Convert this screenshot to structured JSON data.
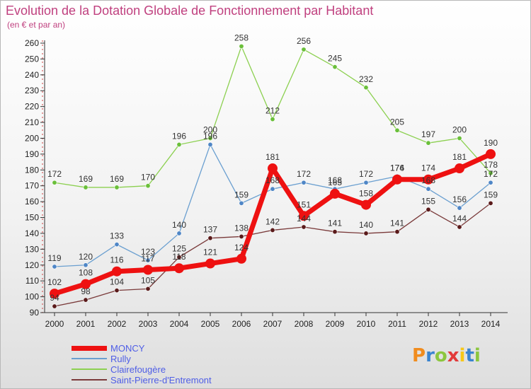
{
  "header": {
    "title": "Evolution de la Dotation Globale de Fonctionnement par Habitant",
    "subtitle": "(en € et par an)"
  },
  "logo": {
    "text": "Proxiti",
    "colors": [
      "#f08c1e",
      "#3a84cf",
      "#8cc63f",
      "#e23a3a",
      "#f7c718",
      "#3a84cf",
      "#8cc63f"
    ]
  },
  "chart_data": {
    "type": "line",
    "x": [
      "2000",
      "2001",
      "2002",
      "2003",
      "2004",
      "2005",
      "2006",
      "2007",
      "2008",
      "2009",
      "2010",
      "2011",
      "2012",
      "2013",
      "2014"
    ],
    "ylim": [
      90,
      260
    ],
    "yticks": [
      90,
      100,
      110,
      120,
      130,
      140,
      150,
      160,
      170,
      180,
      190,
      200,
      210,
      220,
      230,
      240,
      250,
      260
    ],
    "grid": false,
    "legend_position": "bottom-left",
    "series": [
      {
        "name": "Clairefougère",
        "color": "#8cd050",
        "marker": "#6abf3a",
        "values": [
          172,
          169,
          169,
          170,
          196,
          200,
          258,
          212,
          256,
          245,
          232,
          205,
          197,
          200,
          178
        ],
        "labels": [
          "172",
          "169",
          "169",
          "170",
          "196",
          "200",
          "258",
          "212",
          "256",
          "245",
          "232",
          "205",
          "197",
          "200",
          "178"
        ]
      },
      {
        "name": "Rully",
        "color": "#6a9fd0",
        "marker": "#4f86c6",
        "values": [
          119,
          120,
          133,
          123,
          140,
          196,
          159,
          168,
          172,
          168,
          172,
          176,
          168,
          156,
          172
        ],
        "labels": [
          "119",
          "120",
          "133",
          "123",
          "140",
          "196",
          "159",
          "168",
          "172",
          "168",
          "172",
          "176",
          "168",
          "156",
          "172"
        ]
      },
      {
        "name": "Saint-Pierre-d'Entremont",
        "color": "#7a3a3a",
        "marker": "#5a1a1a",
        "values": [
          94,
          98,
          104,
          105,
          125,
          137,
          138,
          142,
          144,
          141,
          140,
          141,
          155,
          144,
          159
        ],
        "labels": [
          "94",
          "98",
          "104",
          "105",
          "125",
          "137",
          "138",
          "142",
          "144",
          "141",
          "140",
          "141",
          "155",
          "144",
          "159"
        ]
      },
      {
        "name": "MONCY",
        "color": "#ee1111",
        "marker": "#ee1111",
        "values": [
          102,
          108,
          116,
          117,
          118,
          121,
          124,
          181,
          151,
          165,
          158,
          174,
          174,
          181,
          190
        ],
        "labels": [
          "102",
          "108",
          "116",
          "117",
          "118",
          "121",
          "124",
          "181",
          "151",
          "165",
          "158",
          "174",
          "174",
          "181",
          "190"
        ]
      }
    ],
    "legend": [
      {
        "name": "MONCY",
        "color": "#ee1111",
        "thickness": 7
      },
      {
        "name": "Rully",
        "color": "#6a9fd0",
        "thickness": 2
      },
      {
        "name": "Clairefougère",
        "color": "#8cd050",
        "thickness": 2
      },
      {
        "name": "Saint-Pierre-d'Entremont",
        "color": "#7a3a3a",
        "thickness": 2
      }
    ]
  }
}
